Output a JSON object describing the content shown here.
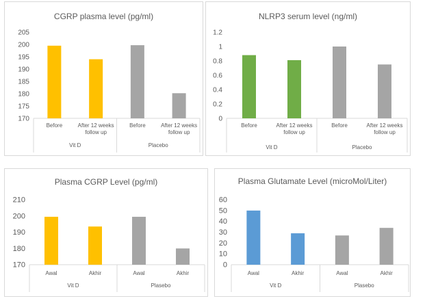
{
  "chart_data": [
    {
      "type": "bar",
      "title": "CGRP plasma level (pg/ml)",
      "groups": [
        {
          "name": "Vit D",
          "categories": [
            "Before",
            "After 12 weeks follow up"
          ]
        },
        {
          "name": "Placebo",
          "categories": [
            "Before",
            "After 12 weeks follow up"
          ]
        }
      ],
      "values": [
        199.5,
        194,
        199.7,
        180.2
      ],
      "colors": [
        "#ffc000",
        "#ffc000",
        "#a5a5a5",
        "#a5a5a5"
      ],
      "ylim": [
        170,
        205
      ],
      "yticks": [
        "170",
        "175",
        "180",
        "185",
        "190",
        "195",
        "200",
        "205"
      ],
      "grid": false,
      "legend": "none"
    },
    {
      "type": "bar",
      "title": "NLRP3 serum level  (ng/ml)",
      "groups": [
        {
          "name": "Vit D",
          "categories": [
            "Before",
            "After 12 weeks follow up"
          ]
        },
        {
          "name": "Placebo",
          "categories": [
            "Before",
            "After 12 weeks follow up"
          ]
        }
      ],
      "values": [
        0.88,
        0.81,
        1.0,
        0.75
      ],
      "colors": [
        "#70ad47",
        "#70ad47",
        "#a5a5a5",
        "#a5a5a5"
      ],
      "ylim": [
        0,
        1.2
      ],
      "yticks": [
        "0",
        "0.2",
        "0.4",
        "0.6",
        "0.8",
        "1",
        "1.2"
      ],
      "grid": false,
      "legend": "none"
    },
    {
      "type": "bar",
      "title": "Plasma CGRP Level (pg/ml)",
      "groups": [
        {
          "name": "Vit D",
          "categories": [
            "Awal",
            "Akhir"
          ]
        },
        {
          "name": "Plasebo",
          "categories": [
            "Awal",
            "Akhir"
          ]
        }
      ],
      "values": [
        199.5,
        193.5,
        199.5,
        180
      ],
      "colors": [
        "#ffc000",
        "#ffc000",
        "#a5a5a5",
        "#a5a5a5"
      ],
      "ylim": [
        170,
        210
      ],
      "yticks": [
        "170",
        "180",
        "190",
        "200",
        "210"
      ],
      "grid": false,
      "legend": "none"
    },
    {
      "type": "bar",
      "title": "Plasma Glutamate Level (microMol/Liter)",
      "groups": [
        {
          "name": "Vit D",
          "categories": [
            "Awal",
            "Akhir"
          ]
        },
        {
          "name": "Plasebo",
          "categories": [
            "Awal",
            "Akhir"
          ]
        }
      ],
      "values": [
        50,
        29,
        27,
        34
      ],
      "colors": [
        "#5b9bd5",
        "#5b9bd5",
        "#a5a5a5",
        "#a5a5a5"
      ],
      "ylim": [
        0,
        60
      ],
      "yticks": [
        "0",
        "10",
        "20",
        "30",
        "40",
        "50",
        "60"
      ],
      "grid": false,
      "legend": "none"
    }
  ]
}
